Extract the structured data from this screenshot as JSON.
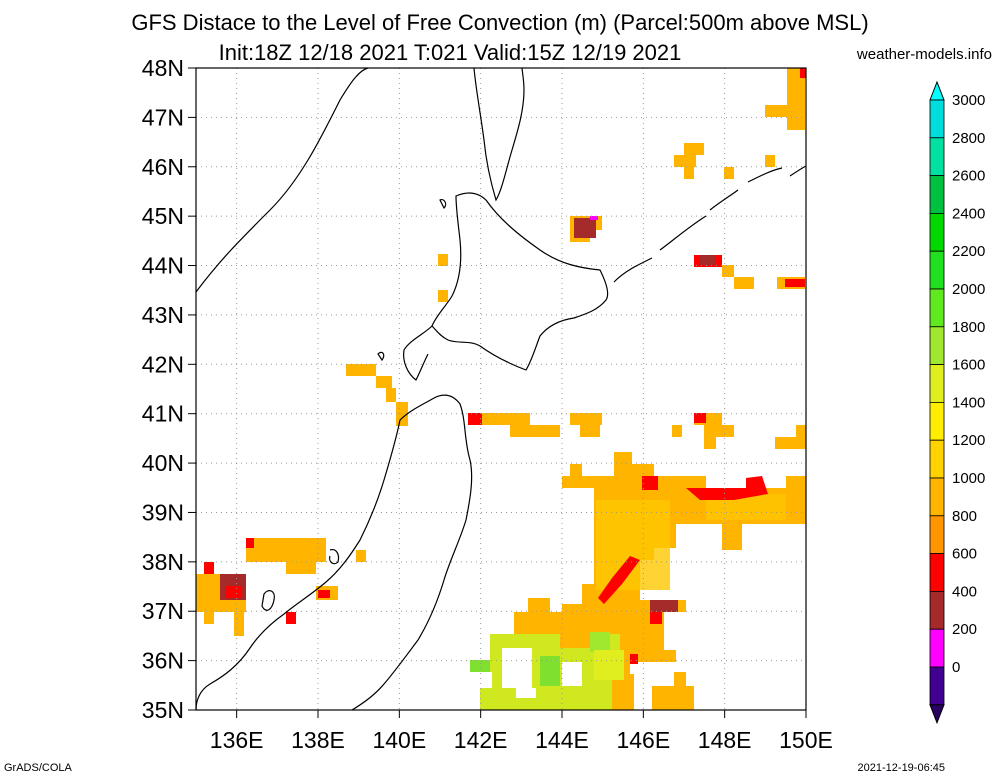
{
  "header": {
    "title": "GFS Distace to the Level of Free Convection (m) (Parcel:500m above MSL)",
    "subtitle": "Init:18Z 12/18 2021 T:021 Valid:15Z 12/19 2021",
    "site": "weather-models.info"
  },
  "footer": {
    "left": "GrADS/COLA",
    "right": "2021-12-19-06:45"
  },
  "map": {
    "lat_labels": [
      "48N",
      "47N",
      "46N",
      "45N",
      "44N",
      "43N",
      "42N",
      "41N",
      "40N",
      "39N",
      "38N",
      "37N",
      "36N",
      "35N"
    ],
    "lon_labels": [
      "136E",
      "138E",
      "140E",
      "142E",
      "144E",
      "146E",
      "148E",
      "150E"
    ],
    "lat_range": [
      35,
      48
    ],
    "lon_range": [
      135,
      150
    ]
  },
  "legend": {
    "labels": [
      "3000",
      "2800",
      "2600",
      "2400",
      "2200",
      "2000",
      "1800",
      "1600",
      "1400",
      "1200",
      "1000",
      "800",
      "600",
      "400",
      "200",
      "0"
    ],
    "colors": [
      "#00dddd",
      "#00e0a0",
      "#00c040",
      "#00d800",
      "#20e020",
      "#60e820",
      "#a0e830",
      "#e0ee20",
      "#ffee00",
      "#ffd200",
      "#ffb400",
      "#ff9600",
      "#ff0000",
      "#a52a2a",
      "#ff00ff",
      "#400090"
    ],
    "top_arrow_color": "#00ffff",
    "bottom_arrow_color": "#2a0060"
  }
}
